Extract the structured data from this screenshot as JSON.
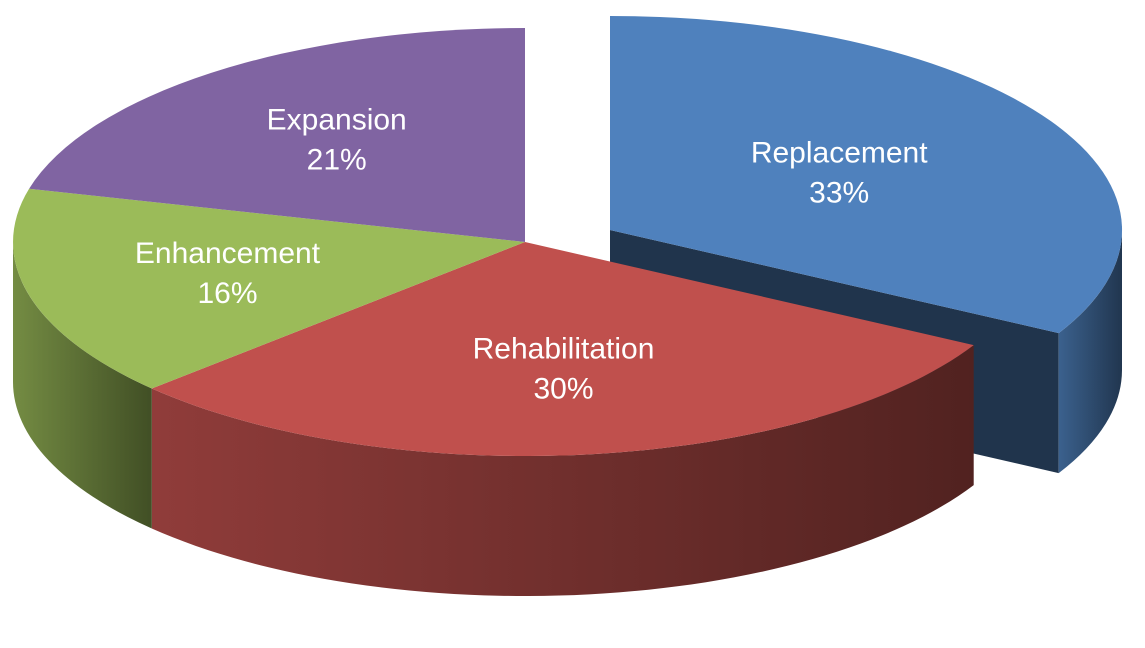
{
  "chart_data": {
    "type": "pie",
    "categories": [
      "Replacement",
      "Rehabilitation",
      "Enhancement",
      "Expansion"
    ],
    "values": [
      33,
      30,
      16,
      21
    ],
    "value_labels": [
      "33%",
      "30%",
      "16%",
      "21%"
    ],
    "colors": [
      "#4f81bd",
      "#c0504d",
      "#9bbb59",
      "#8064a2"
    ],
    "explode": [
      true,
      false,
      false,
      false
    ]
  }
}
